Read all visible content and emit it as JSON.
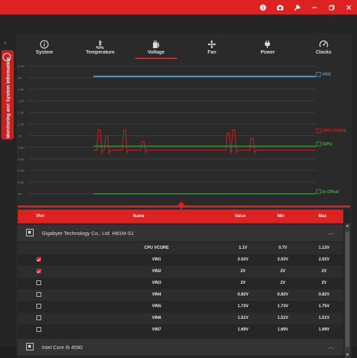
{
  "titlebar": {
    "icons": [
      "info-icon",
      "camera-icon",
      "wrench-icon",
      "minimize-icon",
      "restore-icon",
      "close-icon"
    ]
  },
  "sidebar": {
    "label": "Monitoring and System Information"
  },
  "tabs": [
    {
      "label": "System",
      "icon": "info-icon"
    },
    {
      "label": "Temperature",
      "icon": "thermometer-icon"
    },
    {
      "label": "Voltage",
      "icon": "plug-bolt-icon",
      "active": true
    },
    {
      "label": "Fan",
      "icon": "fan-icon"
    },
    {
      "label": "Power",
      "icon": "power-plug-icon"
    },
    {
      "label": "Clocks",
      "icon": "gauge-icon"
    }
  ],
  "chart_data": {
    "type": "line",
    "yticks": [
      "2.2V",
      "2V",
      "1.8V",
      "1.6V",
      "1.4V",
      "1.2V",
      "1V",
      "0.8V",
      "0.6V",
      "0.4V",
      "0.2V",
      "0V"
    ],
    "ylim": [
      0,
      2.2
    ],
    "grid": true,
    "series": [
      {
        "name": "VIN1",
        "color": "#4a9fd8",
        "value": 2.02
      },
      {
        "name": "CPU VCORE",
        "color": "#d22222",
        "baseline": 0.75,
        "spikes": [
          1.1,
          1.0,
          1.1,
          0.9,
          1.05,
          1.1,
          0.95
        ]
      },
      {
        "name": "iGPU",
        "color": "#3cb043",
        "value": 0.82
      },
      {
        "name": "IA Offset",
        "color": "#3cb043",
        "value": 0.0
      }
    ]
  },
  "table": {
    "headers": {
      "plot": "Plot",
      "name": "Name",
      "value": "Value",
      "min": "Min",
      "max": "Max"
    },
    "device1": "Gigabyte Technology Co., Ltd. H81M-S1",
    "device2": "Intel Core i5 4590",
    "rows": [
      {
        "name": "CPU VCORE",
        "value": "1.1V",
        "min": "0.7V",
        "max": "1.13V",
        "checked": null
      },
      {
        "name": "VIN1",
        "value": "2.02V",
        "min": "2.02V",
        "max": "2.02V",
        "checked": true
      },
      {
        "name": "VIN2",
        "value": "2V",
        "min": "2V",
        "max": "2V",
        "checked": true
      },
      {
        "name": "VIN3",
        "value": "2V",
        "min": "2V",
        "max": "2V",
        "checked": false
      },
      {
        "name": "VIN4",
        "value": "0.82V",
        "min": "0.82V",
        "max": "0.82V",
        "checked": false
      },
      {
        "name": "VIN5",
        "value": "1.73V",
        "min": "1.73V",
        "max": "1.75V",
        "checked": false
      },
      {
        "name": "VIN6",
        "value": "1.51V",
        "min": "1.51V",
        "max": "1.51V",
        "checked": false
      },
      {
        "name": "VIN7",
        "value": "1.69V",
        "min": "1.69V",
        "max": "1.69V",
        "checked": false
      }
    ]
  },
  "colors": {
    "accent": "#dd2222",
    "bg": "#252525",
    "vin1": "#4a9fd8",
    "igpu": "#3cb043"
  }
}
